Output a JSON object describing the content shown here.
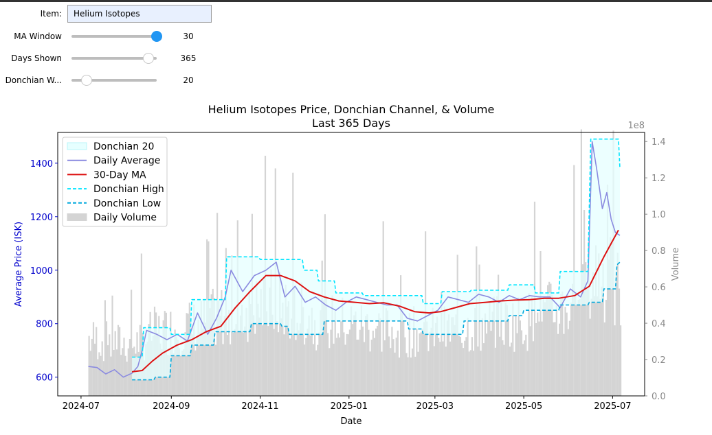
{
  "controls": {
    "item": {
      "label": "Item:",
      "value": "Helium Isotopes"
    },
    "ma_window": {
      "label": "MA Window",
      "value": "30",
      "fraction": 1.0
    },
    "days_shown": {
      "label": "Days Shown",
      "value": "365",
      "fraction": 0.9
    },
    "donchian_window": {
      "label": "Donchian W...",
      "value": "20",
      "fraction": 0.18
    }
  },
  "colors": {
    "price_axis": "#0000cc",
    "volume_axis": "#888888",
    "daily_average": "#8a8ae0",
    "ma": "#dd1111",
    "donchian_high": "#00e5ff",
    "donchian_low": "#00a8dd",
    "donchian_fill": "#e6ffff",
    "volume": "#d4d4d4",
    "slider_active": "#2196f3"
  },
  "chart_data": {
    "type": "line",
    "title": "Helium Isotopes Price, Donchian Channel, & Volume\nLast 365 Days",
    "xlabel": "Date",
    "ylabel": "Average Price (ISK)",
    "y2label": "Volume",
    "y2_offset_label": "1e8",
    "xlim": [
      "2024-06-15",
      "2025-07-23"
    ],
    "ylim": [
      530,
      1515
    ],
    "y2lim": [
      0,
      1.45
    ],
    "x_ticks": [
      "2024-07",
      "2024-09",
      "2024-11",
      "2025-01",
      "2025-03",
      "2025-05",
      "2025-07"
    ],
    "y_ticks": [
      600,
      800,
      1000,
      1200,
      1400
    ],
    "y2_ticks": [
      "0.0",
      "0.2",
      "0.4",
      "0.6",
      "0.8",
      "1.0",
      "1.2",
      "1.4"
    ],
    "grid": false,
    "legend": {
      "position": "top-left",
      "entries": [
        "Donchian 20",
        "Daily Average",
        "30-Day MA",
        "Donchian High",
        "Donchian Low",
        "Daily Volume"
      ]
    },
    "series": [
      {
        "name": "Daily Average",
        "points": [
          [
            "2024-07-06",
            640
          ],
          [
            "2024-07-12",
            636
          ],
          [
            "2024-07-18",
            612
          ],
          [
            "2024-07-24",
            628
          ],
          [
            "2024-07-30",
            600
          ],
          [
            "2024-08-05",
            615
          ],
          [
            "2024-08-09",
            640
          ],
          [
            "2024-08-12",
            700
          ],
          [
            "2024-08-15",
            775
          ],
          [
            "2024-08-22",
            760
          ],
          [
            "2024-08-29",
            740
          ],
          [
            "2024-09-05",
            760
          ],
          [
            "2024-09-12",
            735
          ],
          [
            "2024-09-19",
            840
          ],
          [
            "2024-09-26",
            760
          ],
          [
            "2024-10-02",
            820
          ],
          [
            "2024-10-08",
            900
          ],
          [
            "2024-10-12",
            1000
          ],
          [
            "2024-10-20",
            920
          ],
          [
            "2024-10-28",
            980
          ],
          [
            "2024-11-05",
            1000
          ],
          [
            "2024-11-12",
            1030
          ],
          [
            "2024-11-18",
            900
          ],
          [
            "2024-11-25",
            940
          ],
          [
            "2024-12-02",
            880
          ],
          [
            "2024-12-09",
            900
          ],
          [
            "2024-12-16",
            870
          ],
          [
            "2024-12-23",
            850
          ],
          [
            "2024-12-30",
            880
          ],
          [
            "2025-01-06",
            900
          ],
          [
            "2025-01-13",
            890
          ],
          [
            "2025-01-20",
            880
          ],
          [
            "2025-01-27",
            870
          ],
          [
            "2025-02-03",
            870
          ],
          [
            "2025-02-10",
            820
          ],
          [
            "2025-02-17",
            810
          ],
          [
            "2025-02-24",
            830
          ],
          [
            "2025-03-03",
            850
          ],
          [
            "2025-03-10",
            900
          ],
          [
            "2025-03-17",
            890
          ],
          [
            "2025-03-24",
            880
          ],
          [
            "2025-03-31",
            910
          ],
          [
            "2025-04-07",
            900
          ],
          [
            "2025-04-14",
            880
          ],
          [
            "2025-04-21",
            905
          ],
          [
            "2025-04-28",
            890
          ],
          [
            "2025-05-05",
            905
          ],
          [
            "2025-05-12",
            900
          ],
          [
            "2025-05-19",
            900
          ],
          [
            "2025-05-26",
            860
          ],
          [
            "2025-06-02",
            930
          ],
          [
            "2025-06-09",
            900
          ],
          [
            "2025-06-14",
            960
          ],
          [
            "2025-06-17",
            1480
          ],
          [
            "2025-06-20",
            1380
          ],
          [
            "2025-06-24",
            1230
          ],
          [
            "2025-06-27",
            1290
          ],
          [
            "2025-06-30",
            1190
          ],
          [
            "2025-07-03",
            1140
          ],
          [
            "2025-07-06",
            1130
          ]
        ]
      },
      {
        "name": "30-Day MA",
        "points": [
          [
            "2024-08-05",
            620
          ],
          [
            "2024-08-12",
            625
          ],
          [
            "2024-08-19",
            660
          ],
          [
            "2024-08-26",
            690
          ],
          [
            "2024-09-05",
            720
          ],
          [
            "2024-09-15",
            740
          ],
          [
            "2024-09-25",
            770
          ],
          [
            "2024-10-05",
            790
          ],
          [
            "2024-10-15",
            860
          ],
          [
            "2024-10-25",
            920
          ],
          [
            "2024-11-05",
            980
          ],
          [
            "2024-11-15",
            980
          ],
          [
            "2024-11-25",
            960
          ],
          [
            "2024-12-05",
            920
          ],
          [
            "2024-12-15",
            900
          ],
          [
            "2024-12-25",
            885
          ],
          [
            "2025-01-05",
            880
          ],
          [
            "2025-01-15",
            875
          ],
          [
            "2025-01-25",
            878
          ],
          [
            "2025-02-05",
            865
          ],
          [
            "2025-02-15",
            845
          ],
          [
            "2025-02-25",
            840
          ],
          [
            "2025-03-05",
            845
          ],
          [
            "2025-03-15",
            860
          ],
          [
            "2025-03-25",
            875
          ],
          [
            "2025-04-05",
            880
          ],
          [
            "2025-04-15",
            885
          ],
          [
            "2025-04-25",
            888
          ],
          [
            "2025-05-05",
            890
          ],
          [
            "2025-05-15",
            895
          ],
          [
            "2025-05-25",
            895
          ],
          [
            "2025-06-05",
            905
          ],
          [
            "2025-06-15",
            940
          ],
          [
            "2025-06-25",
            1050
          ],
          [
            "2025-07-05",
            1150
          ]
        ]
      },
      {
        "name": "Donchian High",
        "points": [
          [
            "2024-08-05",
            675
          ],
          [
            "2024-08-12",
            675
          ],
          [
            "2024-08-13",
            785
          ],
          [
            "2024-08-31",
            785
          ],
          [
            "2024-09-01",
            760
          ],
          [
            "2024-09-14",
            760
          ],
          [
            "2024-09-15",
            890
          ],
          [
            "2024-10-08",
            890
          ],
          [
            "2024-10-09",
            1050
          ],
          [
            "2024-10-31",
            1050
          ],
          [
            "2024-11-01",
            1040
          ],
          [
            "2024-11-30",
            1040
          ],
          [
            "2024-12-01",
            1000
          ],
          [
            "2024-12-10",
            1000
          ],
          [
            "2024-12-11",
            960
          ],
          [
            "2024-12-22",
            960
          ],
          [
            "2024-12-23",
            915
          ],
          [
            "2025-01-10",
            915
          ],
          [
            "2025-01-11",
            905
          ],
          [
            "2025-02-20",
            905
          ],
          [
            "2025-02-21",
            875
          ],
          [
            "2025-03-05",
            875
          ],
          [
            "2025-03-06",
            920
          ],
          [
            "2025-03-25",
            920
          ],
          [
            "2025-03-26",
            925
          ],
          [
            "2025-04-20",
            925
          ],
          [
            "2025-04-21",
            945
          ],
          [
            "2025-05-08",
            945
          ],
          [
            "2025-05-09",
            915
          ],
          [
            "2025-05-25",
            915
          ],
          [
            "2025-05-26",
            995
          ],
          [
            "2025-06-14",
            995
          ],
          [
            "2025-06-16",
            1490
          ],
          [
            "2025-07-05",
            1490
          ],
          [
            "2025-07-06",
            1380
          ]
        ]
      },
      {
        "name": "Donchian Low",
        "points": [
          [
            "2024-08-05",
            590
          ],
          [
            "2024-08-20",
            590
          ],
          [
            "2024-08-21",
            600
          ],
          [
            "2024-08-31",
            600
          ],
          [
            "2024-09-01",
            680
          ],
          [
            "2024-09-14",
            680
          ],
          [
            "2024-09-15",
            720
          ],
          [
            "2024-09-30",
            720
          ],
          [
            "2024-10-01",
            770
          ],
          [
            "2024-10-25",
            770
          ],
          [
            "2024-10-26",
            800
          ],
          [
            "2024-11-15",
            800
          ],
          [
            "2024-11-16",
            790
          ],
          [
            "2024-11-20",
            790
          ],
          [
            "2024-11-21",
            760
          ],
          [
            "2024-12-14",
            760
          ],
          [
            "2024-12-15",
            810
          ],
          [
            "2025-01-10",
            810
          ],
          [
            "2025-01-11",
            810
          ],
          [
            "2025-02-10",
            810
          ],
          [
            "2025-02-11",
            780
          ],
          [
            "2025-02-20",
            780
          ],
          [
            "2025-02-21",
            760
          ],
          [
            "2025-03-20",
            760
          ],
          [
            "2025-03-21",
            810
          ],
          [
            "2025-04-20",
            810
          ],
          [
            "2025-04-21",
            830
          ],
          [
            "2025-04-30",
            830
          ],
          [
            "2025-05-01",
            850
          ],
          [
            "2025-05-25",
            850
          ],
          [
            "2025-05-26",
            870
          ],
          [
            "2025-06-14",
            870
          ],
          [
            "2025-06-15",
            880
          ],
          [
            "2025-06-24",
            880
          ],
          [
            "2025-06-25",
            930
          ],
          [
            "2025-07-03",
            930
          ],
          [
            "2025-07-04",
            1020
          ],
          [
            "2025-07-06",
            1030
          ]
        ]
      },
      {
        "name": "Daily Volume",
        "axis": "right",
        "levels": [
          [
            "2024-07-06",
            0.34
          ],
          [
            "2024-08-05",
            0.3
          ],
          [
            "2024-08-20",
            0.38
          ],
          [
            "2024-09-20",
            0.42
          ],
          [
            "2024-10-10",
            0.5
          ],
          [
            "2024-11-10",
            0.55
          ],
          [
            "2024-12-10",
            0.45
          ],
          [
            "2025-01-05",
            0.42
          ],
          [
            "2025-02-05",
            0.38
          ],
          [
            "2025-03-05",
            0.38
          ],
          [
            "2025-04-05",
            0.42
          ],
          [
            "2025-05-05",
            0.45
          ],
          [
            "2025-06-05",
            0.55
          ],
          [
            "2025-06-20",
            0.75
          ],
          [
            "2025-07-06",
            0.62
          ]
        ]
      }
    ]
  }
}
